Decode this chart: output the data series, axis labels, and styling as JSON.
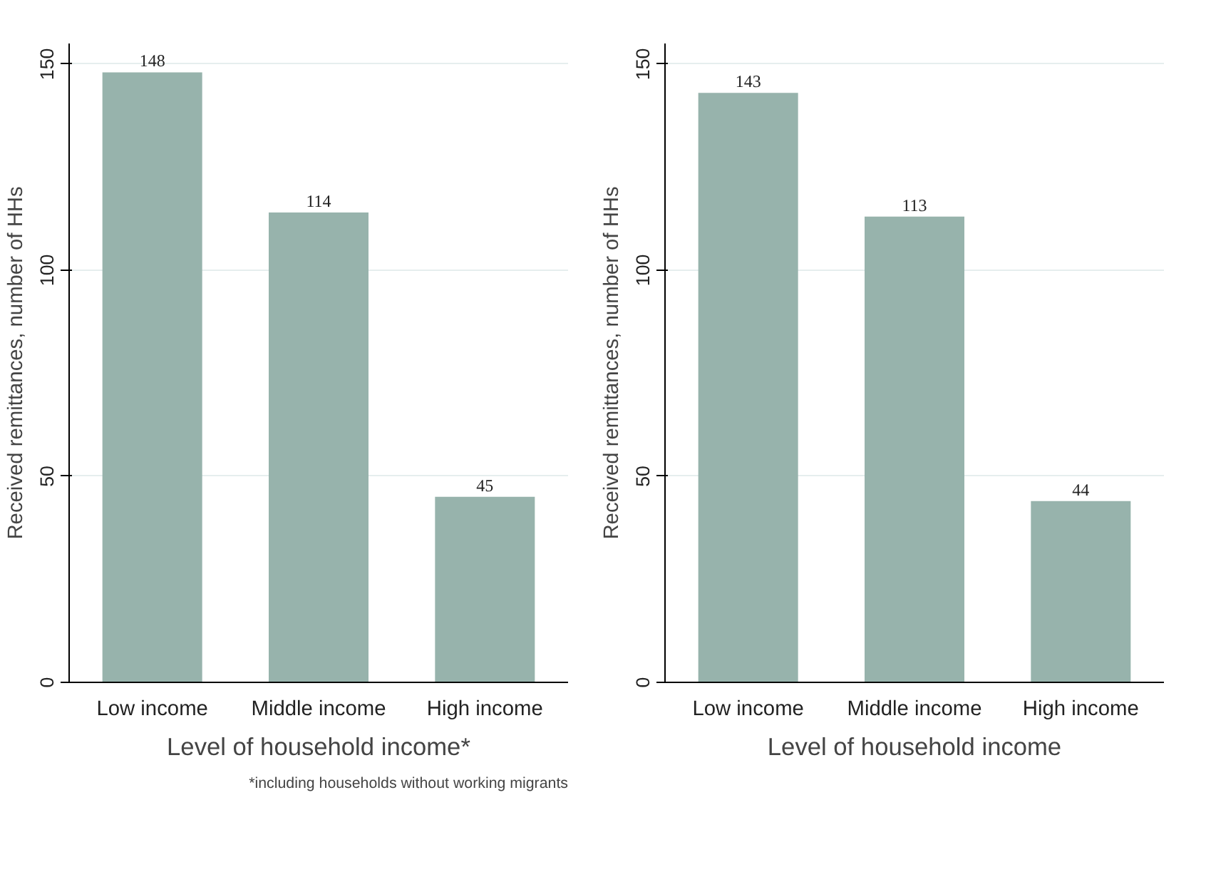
{
  "chart_data": [
    {
      "type": "bar",
      "categories": [
        "Low income",
        "Middle income",
        "High income"
      ],
      "values": [
        148,
        114,
        45
      ],
      "color": "#97b3ac",
      "xlabel": "Level of household income*",
      "ylabel": "Received remittances, number of HHs",
      "ylim": [
        0,
        155
      ],
      "yticks": [
        0,
        50,
        100,
        150
      ],
      "grid": "y",
      "data_labels": true,
      "annotations": [
        "*including households without working migrants"
      ]
    },
    {
      "type": "bar",
      "categories": [
        "Low income",
        "Middle income",
        "High income"
      ],
      "values": [
        143,
        113,
        44
      ],
      "color": "#97b3ac",
      "xlabel": "Level of household income",
      "ylabel": "Received remittances, number of HHs",
      "ylim": [
        0,
        155
      ],
      "yticks": [
        0,
        50,
        100,
        150
      ],
      "grid": "y",
      "data_labels": true
    }
  ]
}
